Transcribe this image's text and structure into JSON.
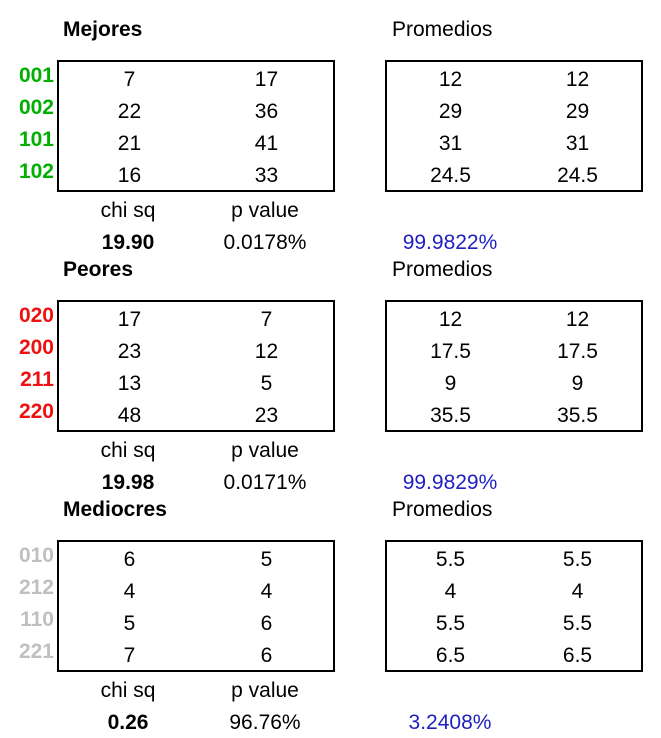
{
  "colors": {
    "best": "#00b000",
    "worst": "#ee1111",
    "mediocre": "#c0c0c0",
    "confidence": "#1f1fbf"
  },
  "sections": [
    {
      "title": "Mejores",
      "avg_title": "Promedios",
      "code_color": "#00b000",
      "codes": [
        "001",
        "002",
        "101",
        "102"
      ],
      "rows": [
        [
          "7",
          "17"
        ],
        [
          "22",
          "36"
        ],
        [
          "21",
          "41"
        ],
        [
          "16",
          "33"
        ]
      ],
      "averages": [
        [
          "12",
          "12"
        ],
        [
          "29",
          "29"
        ],
        [
          "31",
          "31"
        ],
        [
          "24.5",
          "24.5"
        ]
      ],
      "chi_label": "chi sq",
      "p_label": "p value",
      "chi_value": "19.90",
      "p_value": "0.0178%",
      "confidence": "99.9822%"
    },
    {
      "title": "Peores",
      "avg_title": "Promedios",
      "code_color": "#ee1111",
      "codes": [
        "020",
        "200",
        "211",
        "220"
      ],
      "rows": [
        [
          "17",
          "7"
        ],
        [
          "23",
          "12"
        ],
        [
          "13",
          "5"
        ],
        [
          "48",
          "23"
        ]
      ],
      "averages": [
        [
          "12",
          "12"
        ],
        [
          "17.5",
          "17.5"
        ],
        [
          "9",
          "9"
        ],
        [
          "35.5",
          "35.5"
        ]
      ],
      "chi_label": "chi sq",
      "p_label": "p value",
      "chi_value": "19.98",
      "p_value": "0.0171%",
      "confidence": "99.9829%"
    },
    {
      "title": "Mediocres",
      "avg_title": "Promedios",
      "code_color": "#c0c0c0",
      "codes": [
        "010",
        "212",
        "110",
        "221"
      ],
      "rows": [
        [
          "6",
          "5"
        ],
        [
          "4",
          "4"
        ],
        [
          "5",
          "6"
        ],
        [
          "7",
          "6"
        ]
      ],
      "averages": [
        [
          "5.5",
          "5.5"
        ],
        [
          "4",
          "4"
        ],
        [
          "5.5",
          "5.5"
        ],
        [
          "6.5",
          "6.5"
        ]
      ],
      "chi_label": "chi sq",
      "p_label": "p value",
      "chi_value": "0.26",
      "p_value": "96.76%",
      "confidence": "3.2408%"
    }
  ]
}
